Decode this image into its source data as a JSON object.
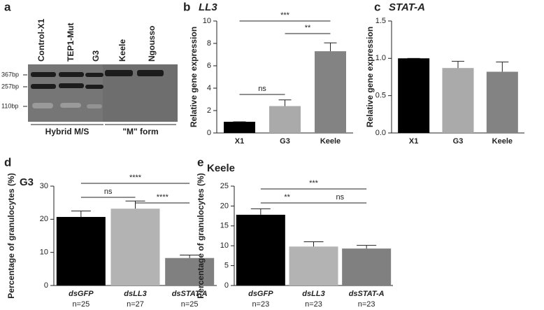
{
  "chart_data": [
    {
      "type": "gel",
      "panel": "a",
      "lanes": [
        "Control-X1",
        "TEP1-Mut",
        "G3",
        "Keele",
        "Ngousso"
      ],
      "size_markers": [
        "367bp",
        "257bp",
        "110bp"
      ],
      "groups": [
        "Hybrid M/S",
        "\"M\" form"
      ]
    },
    {
      "type": "bar",
      "panel": "b",
      "title": "LL3",
      "y_label": "Relative gene expression",
      "categories": [
        "X1",
        "G3",
        "Keele"
      ],
      "values": [
        1,
        2.4,
        7.3
      ],
      "errors": [
        0,
        0.55,
        0.75
      ],
      "colors": [
        "#000000",
        "#aaaaaa",
        "#838383"
      ],
      "ylim": [
        0,
        10
      ],
      "yticks": [
        0,
        2,
        4,
        6,
        8,
        10
      ],
      "comparisons": [
        {
          "between": [
            "X1",
            "G3"
          ],
          "label": "ns"
        },
        {
          "between": [
            "G3",
            "Keele"
          ],
          "label": "**"
        },
        {
          "between": [
            "X1",
            "Keele"
          ],
          "label": "***"
        }
      ]
    },
    {
      "type": "bar",
      "panel": "c",
      "title": "STAT-A",
      "y_label": "Relative gene expression",
      "categories": [
        "X1",
        "G3",
        "Keele"
      ],
      "values": [
        1,
        0.87,
        0.82
      ],
      "errors": [
        0,
        0.09,
        0.13
      ],
      "colors": [
        "#000000",
        "#aaaaaa",
        "#838383"
      ],
      "ylim": [
        0,
        1.5
      ],
      "yticks": [
        {
          "value": 0,
          "label": "0.0"
        },
        0.5,
        {
          "value": 1,
          "label": "1.0"
        },
        1.5
      ],
      "comparisons": []
    },
    {
      "type": "bar",
      "panel": "d",
      "title": "G3",
      "y_label": "Percentage of granulocytes (%)",
      "categories": [
        "dsGFP",
        "dsLL3",
        "dsSTAT-A"
      ],
      "sample_sizes": [
        "n=25",
        "n=27",
        "n=25"
      ],
      "values": [
        20.7,
        23.2,
        8.3
      ],
      "errors": [
        1.8,
        2.3,
        0.9
      ],
      "colors": [
        "#000000",
        "#b3b3b3",
        "#808080"
      ],
      "ylim": [
        0,
        30
      ],
      "yticks": [
        0,
        10,
        20,
        30
      ],
      "comparisons": [
        {
          "between": [
            "dsGFP",
            "dsLL3"
          ],
          "label": "ns"
        },
        {
          "between": [
            "dsLL3",
            "dsSTAT-A"
          ],
          "label": "****"
        },
        {
          "between": [
            "dsGFP",
            "dsSTAT-A"
          ],
          "label": "****"
        }
      ]
    },
    {
      "type": "bar",
      "panel": "e",
      "title": "Keele",
      "y_label": "Percentage of granulocytes (%)",
      "categories": [
        "dsGFP",
        "dsLL3",
        "dsSTAT-A"
      ],
      "sample_sizes": [
        "n=23",
        "n=23",
        "n=23"
      ],
      "values": [
        17.8,
        9.8,
        9.3
      ],
      "errors": [
        1.5,
        1.2,
        0.8
      ],
      "colors": [
        "#000000",
        "#b3b3b3",
        "#808080"
      ],
      "ylim": [
        0,
        25
      ],
      "yticks": [
        0,
        5,
        10,
        15,
        20,
        25
      ],
      "comparisons": [
        {
          "between": [
            "dsGFP",
            "dsLL3"
          ],
          "label": "**"
        },
        {
          "between": [
            "dsLL3",
            "dsSTAT-A"
          ],
          "label": "ns"
        },
        {
          "between": [
            "dsGFP",
            "dsSTAT-A"
          ],
          "label": "***"
        }
      ]
    }
  ]
}
